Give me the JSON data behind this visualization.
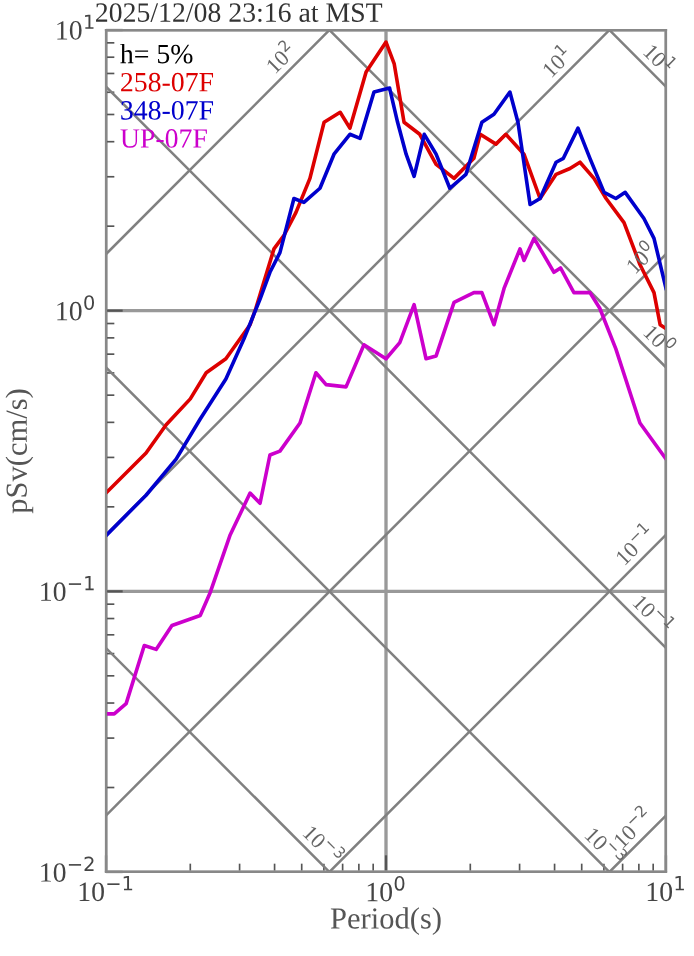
{
  "chart_data": {
    "type": "line",
    "title": "2025/12/08 23:16 at MST",
    "xlabel": "Period(s)",
    "ylabel": "pSv(cm/s)",
    "log": "xy",
    "grid": true,
    "legend": "top left",
    "legend_title": "h= 5%",
    "xlim": [
      0.1,
      10
    ],
    "ylim": [
      0.01,
      10
    ],
    "xticks": [
      {
        "value": 0.1,
        "label": "10$^{−1}$"
      },
      {
        "value": 1,
        "label": "10$^{0}$"
      },
      {
        "value": 10,
        "label": "10$^{1}$"
      }
    ],
    "yticks": [
      {
        "value": 0.01,
        "label": "10$^{−2}$"
      },
      {
        "value": 0.1,
        "label": "10$^{−1}$"
      },
      {
        "value": 1,
        "label": "10$^{0}$"
      },
      {
        "value": 10,
        "label": "10$^{1}$"
      }
    ],
    "series": [
      {
        "color": "#808080",
        "x": [
          0.1,
          0.628
        ],
        "values": [
          1.59,
          10
        ]
      },
      {
        "color": "#808080",
        "x": [
          0.1,
          6.28
        ],
        "values": [
          0.159,
          10
        ]
      },
      {
        "color": "#808080",
        "x": [
          0.1,
          10
        ],
        "values": [
          0.0159,
          1.59
        ]
      },
      {
        "color": "#808080",
        "x": [
          0.628,
          10
        ],
        "values": [
          0.01,
          0.159
        ]
      },
      {
        "color": "#808080",
        "x": [
          6.28,
          10
        ],
        "values": [
          0.01,
          0.0159
        ]
      },
      {
        "color": "#808080",
        "x": [
          6.28,
          10
        ],
        "values": [
          10,
          6.28
        ]
      },
      {
        "color": "#808080",
        "x": [
          0.628,
          10
        ],
        "values": [
          10,
          0.628
        ]
      },
      {
        "color": "#808080",
        "x": [
          0.1,
          10
        ],
        "values": [
          6.28,
          0.0628
        ]
      },
      {
        "color": "#808080",
        "x": [
          0.1,
          6.28
        ],
        "values": [
          0.628,
          0.01
        ]
      },
      {
        "color": "#808080",
        "x": [
          0.1,
          0.628
        ],
        "values": [
          0.0628,
          0.01
        ]
      },
      {
        "name": "258-07F",
        "color": "#dd0000",
        "x": [
          0.1,
          0.139,
          0.164,
          0.2,
          0.228,
          0.268,
          0.327,
          0.343,
          0.398,
          0.433,
          0.477,
          0.535,
          0.601,
          0.686,
          0.743,
          0.849,
          1.0,
          1.07,
          1.16,
          1.32,
          1.51,
          1.75,
          2.06,
          2.17,
          2.47,
          2.68,
          3.11,
          3.55,
          4.05,
          4.54,
          4.93,
          5.53,
          6.11,
          7.08,
          8.07,
          9.06,
          9.53,
          10
        ],
        "values": [
          0.224,
          0.311,
          0.392,
          0.485,
          0.601,
          0.674,
          0.891,
          1.02,
          1.66,
          1.86,
          2.24,
          2.96,
          4.69,
          5.09,
          4.47,
          7.08,
          9.06,
          7.57,
          4.69,
          4.25,
          3.32,
          2.96,
          3.49,
          4.25,
          3.92,
          4.25,
          3.61,
          2.51,
          3.06,
          3.21,
          3.38,
          2.96,
          2.51,
          2.06,
          1.46,
          1.16,
          0.891,
          0.863
        ]
      },
      {
        "name": "348-07F",
        "color": "#0000cc",
        "x": [
          0.1,
          0.139,
          0.178,
          0.217,
          0.268,
          0.311,
          0.355,
          0.385,
          0.418,
          0.469,
          0.509,
          0.581,
          0.652,
          0.743,
          0.808,
          0.906,
          1.03,
          1.1,
          1.18,
          1.26,
          1.37,
          1.51,
          1.69,
          1.93,
          2.2,
          2.43,
          2.77,
          2.96,
          3.27,
          3.55,
          4.05,
          4.3,
          4.85,
          5.35,
          6.01,
          6.62,
          7.15,
          8.34,
          9.06,
          10
        ],
        "values": [
          0.158,
          0.22,
          0.296,
          0.411,
          0.571,
          0.794,
          1.1,
          1.37,
          1.61,
          2.51,
          2.43,
          2.73,
          3.61,
          4.25,
          4.11,
          6.01,
          6.21,
          4.69,
          3.61,
          3.01,
          4.25,
          3.61,
          2.73,
          3.06,
          4.69,
          5.01,
          6.01,
          4.69,
          2.39,
          2.51,
          3.38,
          3.49,
          4.47,
          3.49,
          2.64,
          2.51,
          2.64,
          2.13,
          1.81,
          1.2
        ]
      },
      {
        "name": "UP-07F",
        "color": "#cc00cc",
        "x": [
          0.1,
          0.107,
          0.118,
          0.137,
          0.151,
          0.172,
          0.217,
          0.235,
          0.277,
          0.327,
          0.355,
          0.385,
          0.418,
          0.493,
          0.562,
          0.611,
          0.72,
          0.834,
          1.0,
          1.12,
          1.26,
          1.39,
          1.51,
          1.75,
          2.06,
          2.2,
          2.43,
          2.64,
          3.01,
          3.11,
          3.38,
          3.98,
          4.2,
          4.69,
          5.35,
          5.8,
          6.62,
          8.07,
          10
        ],
        "values": [
          0.0366,
          0.0366,
          0.0398,
          0.0641,
          0.0621,
          0.0756,
          0.082,
          0.0984,
          0.158,
          0.224,
          0.206,
          0.306,
          0.316,
          0.398,
          0.601,
          0.545,
          0.535,
          0.756,
          0.674,
          0.769,
          1.05,
          0.674,
          0.69,
          1.07,
          1.16,
          1.16,
          0.891,
          1.2,
          1.66,
          1.51,
          1.81,
          1.37,
          1.42,
          1.16,
          1.16,
          1.02,
          0.731,
          0.398,
          0.296
        ]
      }
    ],
    "annotations": [
      {
        "text": "10$^{2}$",
        "x": 0.454,
        "y": 7.23
      },
      {
        "text": "10$^{1}$",
        "x": 4.4,
        "y": 7.0
      },
      {
        "text": "10$^{1}$",
        "x": 8.77,
        "y": 7.16
      },
      {
        "text": "10$^{0}$",
        "x": 8.77,
        "y": 1.4
      },
      {
        "text": "10$^{0}$",
        "x": 8.77,
        "y": 0.716
      },
      {
        "text": "10$^{−1}$",
        "x": 8.34,
        "y": 0.133
      },
      {
        "text": "10$^{−1}$",
        "x": 8.34,
        "y": 0.0753
      },
      {
        "text": "10$^{−3}$",
        "x": 0.553,
        "y": 0.01136
      },
      {
        "text": "10$^{−3}$",
        "x": 5.62,
        "y": 0.01117
      },
      {
        "text": "10$^{−2}$",
        "x": 8.2,
        "y": 0.01305
      }
    ]
  }
}
